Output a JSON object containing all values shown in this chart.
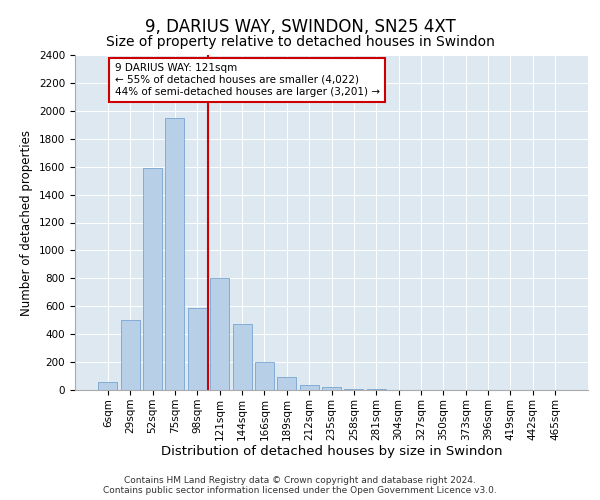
{
  "title1": "9, DARIUS WAY, SWINDON, SN25 4XT",
  "title2": "Size of property relative to detached houses in Swindon",
  "xlabel": "Distribution of detached houses by size in Swindon",
  "ylabel": "Number of detached properties",
  "categories": [
    "6sqm",
    "29sqm",
    "52sqm",
    "75sqm",
    "98sqm",
    "121sqm",
    "144sqm",
    "166sqm",
    "189sqm",
    "212sqm",
    "235sqm",
    "258sqm",
    "281sqm",
    "304sqm",
    "327sqm",
    "350sqm",
    "373sqm",
    "396sqm",
    "419sqm",
    "442sqm",
    "465sqm"
  ],
  "values": [
    60,
    500,
    1590,
    1950,
    590,
    800,
    470,
    200,
    90,
    35,
    25,
    8,
    5,
    0,
    0,
    0,
    0,
    0,
    0,
    0,
    0
  ],
  "bar_color": "#b8cfe8",
  "bar_edge_color": "#6699cc",
  "vline_color": "#cc0000",
  "vline_x": 4.5,
  "annotation_text": "9 DARIUS WAY: 121sqm\n← 55% of detached houses are smaller (4,022)\n44% of semi-detached houses are larger (3,201) →",
  "annotation_box_facecolor": "#ffffff",
  "annotation_box_edgecolor": "#cc0000",
  "ylim": [
    0,
    2400
  ],
  "yticks": [
    0,
    200,
    400,
    600,
    800,
    1000,
    1200,
    1400,
    1600,
    1800,
    2000,
    2200,
    2400
  ],
  "background_color": "#dde8f0",
  "footer1": "Contains HM Land Registry data © Crown copyright and database right 2024.",
  "footer2": "Contains public sector information licensed under the Open Government Licence v3.0.",
  "title_fontsize": 12,
  "subtitle_fontsize": 10,
  "tick_fontsize": 7.5,
  "ylabel_fontsize": 8.5,
  "xlabel_fontsize": 9.5,
  "annotation_fontsize": 7.5,
  "footer_fontsize": 6.5
}
